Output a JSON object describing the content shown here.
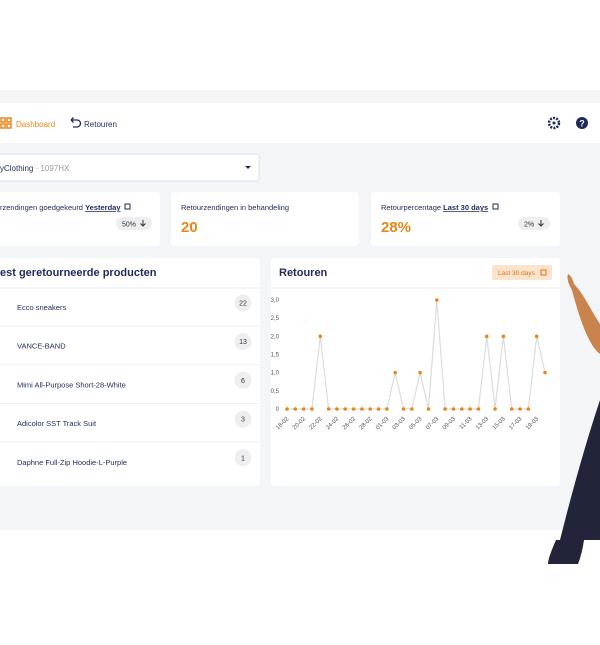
{
  "nav": {
    "dashboard": "Dashboard",
    "returns": "Retouren"
  },
  "store_select": {
    "name": "yClothing",
    "code": "· 1097HX"
  },
  "kpis": [
    {
      "label": "rzendingen goedgekeurd",
      "period": "Yesterday",
      "badge": "50%"
    },
    {
      "label": "Retourzendingen in behandeling",
      "value": "20"
    },
    {
      "label": "Retourpercentage",
      "period": "Last 30 days",
      "value": "28%",
      "badge": "2%"
    }
  ],
  "products": {
    "title": "est geretourneerde producten",
    "items": [
      {
        "name": "Ecco sneakers",
        "count": "22"
      },
      {
        "name": "VANCE-BAND",
        "count": "13"
      },
      {
        "name": "Mimi All-Purpose Short-28-White",
        "count": "6"
      },
      {
        "name": "Adicolor SST Track Suit",
        "count": "3"
      },
      {
        "name": "Daphne Full-Zip Hoodie-L-Purple",
        "count": "1"
      }
    ]
  },
  "chart_data": {
    "type": "line",
    "title": "Retouren",
    "period_button": "Last 30 days",
    "categories": [
      "18-02",
      null,
      "20-02",
      null,
      "22-02",
      null,
      "24-02",
      null,
      "26-02",
      null,
      "28-02",
      null,
      "01-03",
      null,
      "03-03",
      null,
      "05-03",
      null,
      "07-03",
      null,
      "09-03",
      null,
      "11-03",
      null,
      "13-03",
      null,
      "15-03",
      null,
      "17-03",
      null,
      "19-03",
      null
    ],
    "series": [
      {
        "name": "Retouren",
        "color": "#e8861a",
        "line_color": "#dcdcdc",
        "values": [
          0,
          0,
          0,
          0,
          2,
          0,
          0,
          0,
          0,
          0,
          0,
          0,
          0,
          1,
          0,
          0,
          1,
          0,
          3,
          0,
          0,
          0,
          0,
          0,
          2,
          0,
          2,
          0,
          0,
          0,
          2,
          1
        ]
      }
    ],
    "ylim": [
      0,
      3
    ],
    "yticks": [
      0,
      {
        "value": 0.5,
        "label": "0,5"
      },
      {
        "value": 1,
        "label": "1,0"
      },
      {
        "value": 1.5,
        "label": "1,5"
      },
      {
        "value": 2,
        "label": "2,0"
      },
      {
        "value": 2.5,
        "label": "2,5"
      },
      {
        "value": 3,
        "label": "3,0"
      }
    ],
    "grid": false
  }
}
